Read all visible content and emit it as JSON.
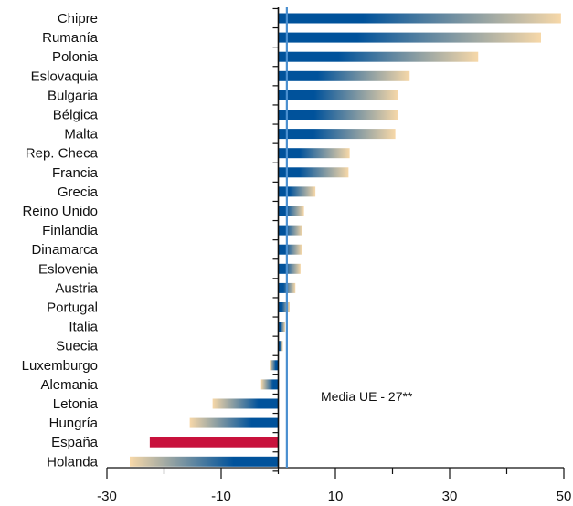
{
  "chart_data": {
    "type": "bar",
    "orientation": "horizontal",
    "categories": [
      "Chipre",
      "Rumanía",
      "Polonia",
      "Eslovaquia",
      "Bulgaria",
      "Bélgica",
      "Malta",
      "Rep. Checa",
      "Francia",
      "Grecia",
      "Reino Unido",
      "Finlandia",
      "Dinamarca",
      "Eslovenia",
      "Austria",
      "Portugal",
      "Italia",
      "Suecia",
      "Luxemburgo",
      "Alemania",
      "Letonia",
      "Hungría",
      "España",
      "Holanda"
    ],
    "values": [
      49.5,
      46,
      35,
      23,
      21,
      21,
      20.5,
      12.5,
      12.3,
      6.5,
      4.5,
      4.2,
      4.1,
      3.9,
      3,
      2,
      1.2,
      0.8,
      -1.5,
      -3,
      -11.5,
      -15.5,
      -22.5,
      -26
    ],
    "xlim": [
      -30,
      50
    ],
    "xticks": [
      -30,
      -10,
      10,
      30,
      50
    ],
    "reference_line": {
      "value": 1.5,
      "label": "Media UE - 27**"
    },
    "highlight": {
      "category": "España",
      "color": "#c8123c"
    },
    "colors": {
      "bar_start": "#00529b",
      "bar_end": "#f7d8a8",
      "reference_line": "#4a8fd0",
      "highlight_label": "#c8123c",
      "axis": "#111111"
    },
    "title": "",
    "xlabel": "",
    "ylabel": "",
    "grid": false,
    "legend": "none"
  }
}
